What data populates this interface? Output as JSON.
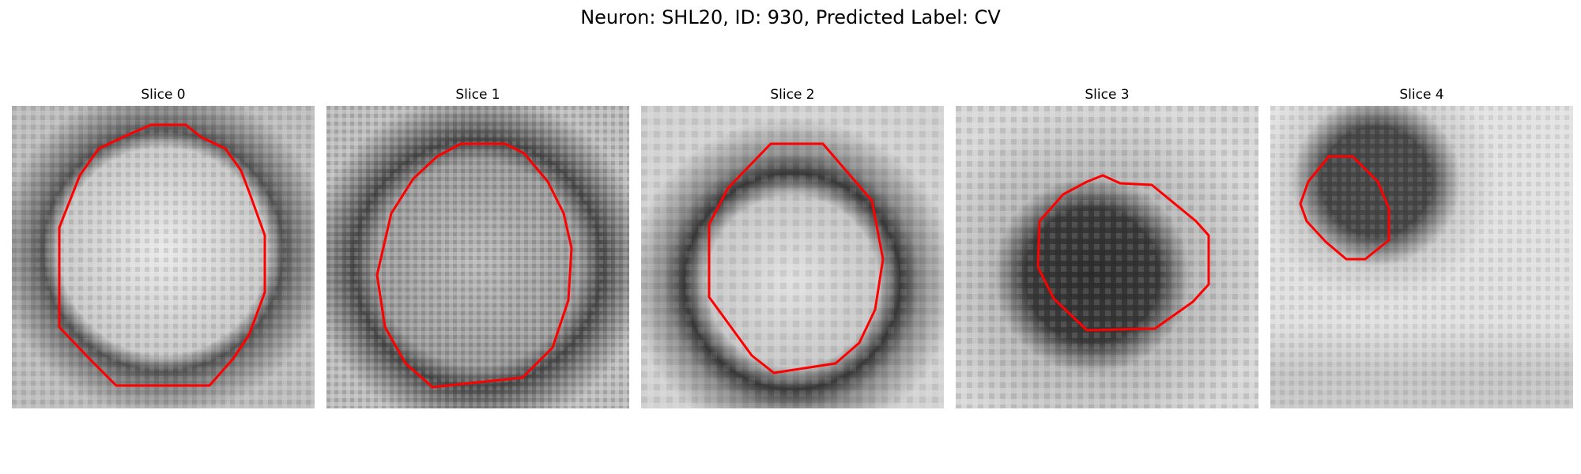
{
  "figure": {
    "title": "Neuron: SHL20, ID: 930, Predicted Label: CV"
  },
  "contour_color": "#ff0000",
  "panels": [
    {
      "label": "Slice 0"
    },
    {
      "label": "Slice 1"
    },
    {
      "label": "Slice 2"
    },
    {
      "label": "Slice 3"
    },
    {
      "label": "Slice 4"
    }
  ]
}
